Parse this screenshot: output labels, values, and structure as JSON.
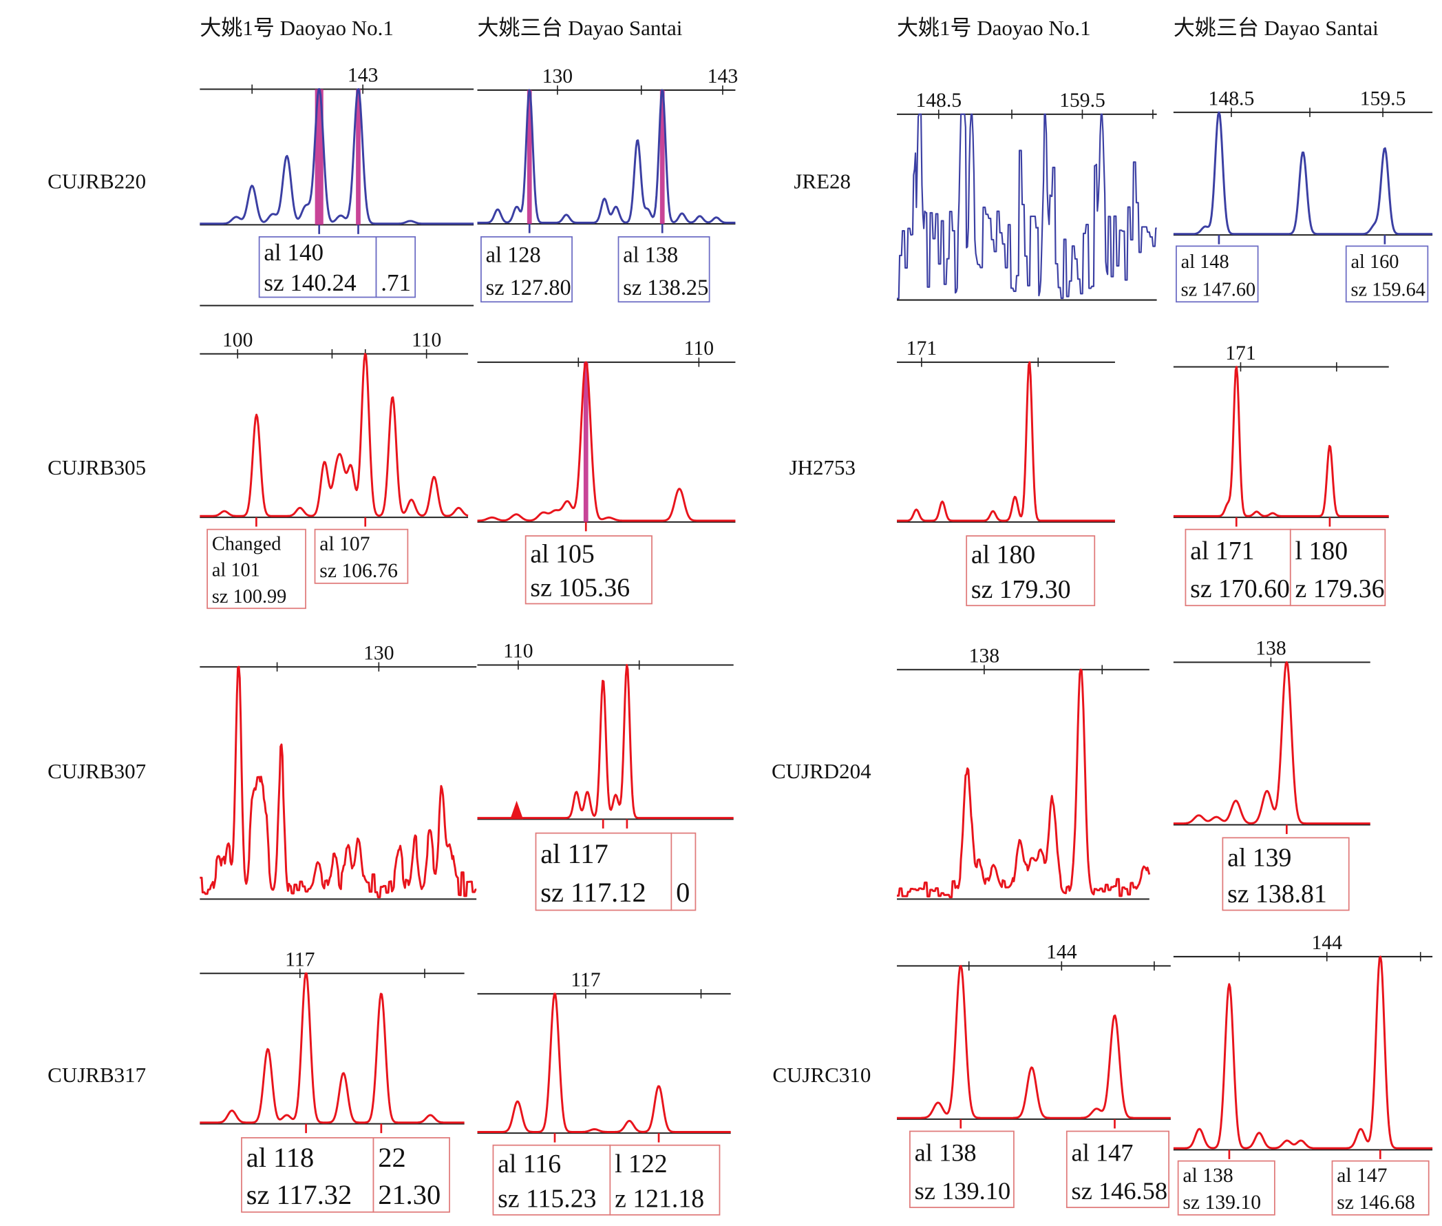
{
  "headers": [
    "大姚1号 Daoyao No.1",
    "大姚三台 Dayao Santai",
    "大姚1号 Daoyao No.1",
    "大姚三台 Dayao Santai"
  ],
  "markers_left": [
    "CUJRB220",
    "CUJRB305",
    "CUJRB307",
    "CUJRB317"
  ],
  "markers_right": [
    "JRE28",
    "JH2753",
    "CUJRD204",
    "CUJRC310"
  ],
  "colors": {
    "blue": "#3b3fa3",
    "red": "#e8141c",
    "highlight": "#c2308c",
    "axis": "#222222"
  },
  "chart_data": [
    {
      "type": "line",
      "marker": "CUJRB220",
      "cultivar": "Daoyao No.1",
      "series_color": "blue",
      "xlim": [
        132.7,
        150.0
      ],
      "ticks": [
        {
          "bp": 136,
          "label": ""
        },
        {
          "bp": 143,
          "label": "143"
        }
      ],
      "peaks": [
        [
          131.8,
          0.03
        ],
        [
          135.0,
          0.05
        ],
        [
          136.0,
          0.28
        ],
        [
          137.3,
          0.07
        ],
        [
          138.2,
          0.5
        ],
        [
          139.4,
          0.13
        ],
        [
          140.24,
          1.0
        ],
        [
          141.6,
          0.06
        ],
        [
          142.71,
          1.0
        ],
        [
          146,
          0.02
        ]
      ],
      "highlight": [
        140.24,
        142.71
      ],
      "called": [
        140.24,
        142.71
      ],
      "boxes": [
        {
          "lines": [
            "al 140",
            "sz 140.24"
          ]
        },
        {
          "lines": [
            "",
            ".71"
          ]
        }
      ]
    },
    {
      "type": "line",
      "marker": "CUJRB220",
      "cultivar": "Dayao Santai",
      "series_color": "blue",
      "xlim": [
        123.7,
        144.0
      ],
      "ticks": [
        {
          "bp": 130,
          "label": "130"
        },
        {
          "bp": 136.6,
          "label": ""
        },
        {
          "bp": 143,
          "label": "143"
        }
      ],
      "peaks": [
        [
          125.3,
          0.1
        ],
        [
          126.8,
          0.12
        ],
        [
          127.8,
          1.0
        ],
        [
          130.7,
          0.06
        ],
        [
          133.7,
          0.18
        ],
        [
          134.6,
          0.12
        ],
        [
          136.3,
          0.62
        ],
        [
          137.1,
          0.1
        ],
        [
          138.25,
          1.0
        ],
        [
          139.8,
          0.07
        ],
        [
          141.2,
          0.05
        ],
        [
          142.5,
          0.04
        ]
      ],
      "highlight": [
        127.8,
        138.25
      ],
      "called": [
        127.8,
        138.25
      ],
      "boxes": [
        {
          "lines": [
            "al 128",
            "sz 127.80"
          ]
        },
        {
          "lines": [
            "al 138",
            "sz 138.25"
          ]
        }
      ]
    },
    {
      "type": "line",
      "marker": "JRE28",
      "cultivar": "Daoyao No.1",
      "series_color": "blue",
      "xlim": [
        145.3,
        165.2
      ],
      "ticks": [
        {
          "bp": 148.5,
          "label": "148.5"
        },
        {
          "bp": 154.1,
          "label": ""
        },
        {
          "bp": 159.5,
          "label": "159.5"
        },
        {
          "bp": 164.9,
          "label": ""
        }
      ],
      "peaks": [
        [
          147.0,
          0.88
        ],
        [
          150.3,
          1.0
        ],
        [
          151.0,
          0.7
        ],
        [
          156.6,
          0.65
        ],
        [
          161.0,
          0.6
        ]
      ],
      "noise": 0.5,
      "highlight": [],
      "called": [],
      "boxes": []
    },
    {
      "type": "line",
      "marker": "JRE28",
      "cultivar": "Dayao Santai",
      "series_color": "blue",
      "xlim": [
        144.3,
        163.1
      ],
      "ticks": [
        {
          "bp": 148.5,
          "label": "148.5"
        },
        {
          "bp": 154.2,
          "label": ""
        },
        {
          "bp": 159.5,
          "label": "159.5"
        }
      ],
      "peaks": [
        [
          146.6,
          0.06
        ],
        [
          147.6,
          1.0
        ],
        [
          153.7,
          0.67
        ],
        [
          158.9,
          0.07
        ],
        [
          159.64,
          0.7
        ]
      ],
      "highlight": [],
      "called": [
        147.6,
        159.64
      ],
      "boxes": [
        {
          "lines": [
            "al 148",
            "sz 147.60"
          ]
        },
        {
          "lines": [
            "al 160",
            "sz 159.64"
          ]
        }
      ]
    },
    {
      "type": "line",
      "marker": "CUJRB305",
      "cultivar": "Daoyao No.1",
      "series_color": "red",
      "xlim": [
        98.0,
        112.2
      ],
      "ticks": [
        {
          "bp": 100,
          "label": "100"
        },
        {
          "bp": 105,
          "label": ""
        },
        {
          "bp": 106.76,
          "label": ""
        },
        {
          "bp": 110,
          "label": "110"
        }
      ],
      "peaks": [
        [
          99.3,
          0.03
        ],
        [
          101.0,
          0.62
        ],
        [
          103.3,
          0.05
        ],
        [
          104.6,
          0.33
        ],
        [
          105.2,
          0.22
        ],
        [
          105.5,
          0.28
        ],
        [
          106.0,
          0.3
        ],
        [
          106.76,
          1.0
        ],
        [
          108.2,
          0.73
        ],
        [
          109.2,
          0.1
        ],
        [
          110.4,
          0.24
        ],
        [
          111.7,
          0.05
        ]
      ],
      "highlight": [],
      "called": [
        100.99,
        106.76
      ],
      "boxes": [
        {
          "lines": [
            "Changed",
            "al 101",
            "sz 100.99"
          ]
        },
        {
          "lines": [
            "al 107",
            "sz 106.76"
          ]
        }
      ]
    },
    {
      "type": "line",
      "marker": "CUJRB305",
      "cultivar": "Dayao Santai",
      "series_color": "red",
      "xlim": [
        100.9,
        111.5
      ],
      "ticks": [
        {
          "bp": 105.05,
          "label": ""
        },
        {
          "bp": 110,
          "label": "110"
        }
      ],
      "peaks": [
        [
          101.5,
          0.02
        ],
        [
          102.5,
          0.04
        ],
        [
          103.6,
          0.05
        ],
        [
          104.1,
          0.06
        ],
        [
          104.6,
          0.12
        ],
        [
          105.36,
          1.0
        ],
        [
          106.3,
          0.02
        ],
        [
          109.2,
          0.2
        ]
      ],
      "highlight": [
        105.36
      ],
      "called": [
        105.36
      ],
      "boxes": [
        {
          "lines": [
            "al 105",
            "sz 105.36"
          ]
        }
      ]
    },
    {
      "type": "line",
      "marker": "JH2753",
      "cultivar": "Daoyao No.1",
      "series_color": "red",
      "xlim": [
        169.1,
        185.9
      ],
      "ticks": [
        {
          "bp": 171,
          "label": "171"
        },
        {
          "bp": 179.98,
          "label": ""
        }
      ],
      "peaks": [
        [
          170.6,
          0.07
        ],
        [
          172.6,
          0.12
        ],
        [
          176.5,
          0.06
        ],
        [
          178.2,
          0.15
        ],
        [
          179.3,
          1.0
        ]
      ],
      "highlight": [],
      "called": [],
      "boxes": [
        {
          "lines": [
            "al 180",
            "sz 179.30"
          ]
        }
      ]
    },
    {
      "type": "line",
      "marker": "JH2753",
      "cultivar": "Dayao Santai",
      "series_color": "red",
      "xlim": [
        164.7,
        184.9
      ],
      "ticks": [
        {
          "bp": 171,
          "label": "171"
        },
        {
          "bp": 180,
          "label": ""
        }
      ],
      "peaks": [
        [
          169.8,
          0.08
        ],
        [
          170.6,
          1.0
        ],
        [
          172.5,
          0.03
        ],
        [
          174.0,
          0.02
        ],
        [
          179.36,
          0.47
        ]
      ],
      "highlight": [],
      "called": [
        170.6,
        179.36
      ],
      "boxes": [
        {
          "lines": [
            "al 171",
            "sz 170.60"
          ]
        },
        {
          "lines": [
            "l 180",
            "z 179.36"
          ]
        }
      ]
    },
    {
      "type": "line",
      "marker": "CUJRB307",
      "cultivar": "Daoyao No.1",
      "series_color": "red",
      "xlim": [
        121.2,
        134.8
      ],
      "ticks": [
        {
          "bp": 125,
          "label": ""
        },
        {
          "bp": 130,
          "label": "130"
        }
      ],
      "peaks": [
        [
          122.1,
          0.12
        ],
        [
          122.6,
          0.18
        ],
        [
          123.1,
          1.0
        ],
        [
          123.8,
          0.35
        ],
        [
          124.1,
          0.45
        ],
        [
          124.4,
          0.35
        ],
        [
          125.2,
          0.55
        ],
        [
          127.0,
          0.1
        ],
        [
          127.8,
          0.14
        ],
        [
          128.5,
          0.18
        ],
        [
          129.0,
          0.2
        ],
        [
          131.0,
          0.15
        ],
        [
          131.8,
          0.2
        ],
        [
          132.5,
          0.2
        ],
        [
          133.1,
          0.4
        ],
        [
          133.5,
          0.16
        ]
      ],
      "noise": 0.07,
      "highlight": [],
      "called": [],
      "boxes": []
    },
    {
      "type": "line",
      "marker": "CUJRB307",
      "cultivar": "Dayao Santai",
      "series_color": "red",
      "xlim": [
        107.6,
        123.9
      ],
      "ticks": [
        {
          "bp": 110.2,
          "label": "110"
        },
        {
          "bp": 117.9,
          "label": ""
        }
      ],
      "peaks": [
        [
          113.9,
          0.17
        ],
        [
          114.6,
          0.17
        ],
        [
          115.6,
          0.9
        ],
        [
          116.4,
          0.15
        ],
        [
          117.12,
          1.0
        ]
      ],
      "filled_peak": [
        110.1,
        0.12
      ],
      "highlight": [],
      "called": [
        115.6,
        117.12
      ],
      "boxes": [
        {
          "lines": [
            "al 117",
            "sz 117.12"
          ]
        },
        {
          "lines": [
            "",
            "0"
          ]
        }
      ]
    },
    {
      "type": "line",
      "marker": "CUJRD204",
      "cultivar": "Daoyao No.1",
      "series_color": "red",
      "xlim": [
        134.3,
        145.0
      ],
      "ticks": [
        {
          "bp": 138,
          "label": "138"
        },
        {
          "bp": 143,
          "label": ""
        }
      ],
      "peaks": [
        [
          137.3,
          0.53
        ],
        [
          137.8,
          0.12
        ],
        [
          138.4,
          0.1
        ],
        [
          139.5,
          0.22
        ],
        [
          140.0,
          0.14
        ],
        [
          140.4,
          0.16
        ],
        [
          140.9,
          0.4
        ],
        [
          142.1,
          1.0
        ],
        [
          144.8,
          0.1
        ]
      ],
      "noise": 0.05,
      "highlight": [],
      "called": [],
      "boxes": []
    },
    {
      "type": "line",
      "marker": "CUJRD204",
      "cultivar": "Dayao Santai",
      "series_color": "red",
      "xlim": [
        133.0,
        143.1
      ],
      "ticks": [
        {
          "bp": 138,
          "label": "138"
        }
      ],
      "peaks": [
        [
          134.3,
          0.05
        ],
        [
          135.2,
          0.04
        ],
        [
          136.2,
          0.14
        ],
        [
          137.8,
          0.2
        ],
        [
          138.81,
          1.0
        ]
      ],
      "highlight": [],
      "called": [
        138.81
      ],
      "boxes": [
        {
          "lines": [
            "al 139",
            "sz 138.81"
          ]
        }
      ]
    },
    {
      "type": "line",
      "marker": "CUJRB317",
      "cultivar": "Daoyao No.1",
      "series_color": "red",
      "xlim": [
        111.7,
        125.7
      ],
      "ticks": [
        {
          "bp": 117,
          "label": "117"
        },
        {
          "bp": 123.6,
          "label": ""
        }
      ],
      "peaks": [
        [
          113.4,
          0.08
        ],
        [
          115.3,
          0.49
        ],
        [
          116.3,
          0.05
        ],
        [
          117.32,
          1.0
        ],
        [
          119.3,
          0.33
        ],
        [
          121.3,
          0.86
        ],
        [
          123.9,
          0.05
        ]
      ],
      "highlight": [],
      "called": [
        117.32,
        121.3
      ],
      "boxes": [
        {
          "lines": [
            "al 118",
            "sz 117.32"
          ]
        },
        {
          "lines": [
            "22",
            "21.30"
          ]
        }
      ]
    },
    {
      "type": "line",
      "marker": "CUJRB317",
      "cultivar": "Dayao Santai",
      "series_color": "red",
      "xlim": [
        110.8,
        125.3
      ],
      "ticks": [
        {
          "bp": 117,
          "label": "117"
        },
        {
          "bp": 123.6,
          "label": ""
        }
      ],
      "peaks": [
        [
          113.1,
          0.22
        ],
        [
          115.23,
          1.0
        ],
        [
          117.5,
          0.02
        ],
        [
          119.5,
          0.08
        ],
        [
          121.18,
          0.33
        ]
      ],
      "highlight": [],
      "called": [
        115.23,
        121.18
      ],
      "boxes": [
        {
          "lines": [
            "al 116",
            "sz 115.23"
          ]
        },
        {
          "lines": [
            "l 122",
            "z 121.18"
          ]
        }
      ]
    },
    {
      "type": "line",
      "marker": "CUJRC310",
      "cultivar": "Daoyao No.1",
      "series_color": "red",
      "xlim": [
        136.0,
        149.3
      ],
      "ticks": [
        {
          "bp": 139.5,
          "label": ""
        },
        {
          "bp": 144,
          "label": "144"
        },
        {
          "bp": 148.5,
          "label": ""
        }
      ],
      "peaks": [
        [
          138.0,
          0.1
        ],
        [
          139.1,
          1.0
        ],
        [
          142.55,
          0.33
        ],
        [
          145.7,
          0.06
        ],
        [
          146.58,
          0.67
        ]
      ],
      "highlight": [],
      "called": [
        139.1,
        146.58
      ],
      "boxes": [
        {
          "lines": [
            "al 138",
            "sz 139.10"
          ]
        },
        {
          "lines": [
            "al 147",
            "sz 146.58"
          ]
        }
      ]
    },
    {
      "type": "line",
      "marker": "CUJRC310",
      "cultivar": "Dayao Santai",
      "series_color": "red",
      "xlim": [
        136.3,
        149.3
      ],
      "ticks": [
        {
          "bp": 139.6,
          "label": ""
        },
        {
          "bp": 144,
          "label": "144"
        },
        {
          "bp": 148.7,
          "label": ""
        }
      ],
      "peaks": [
        [
          137.6,
          0.1
        ],
        [
          139.1,
          0.85
        ],
        [
          140.6,
          0.08
        ],
        [
          142.0,
          0.04
        ],
        [
          142.7,
          0.04
        ],
        [
          145.7,
          0.1
        ],
        [
          146.68,
          1.0
        ]
      ],
      "highlight": [],
      "called": [
        139.1,
        146.68
      ],
      "boxes": [
        {
          "lines": [
            "al 138",
            "sz 139.10"
          ]
        },
        {
          "lines": [
            "al 147",
            "sz 146.68"
          ]
        }
      ]
    }
  ]
}
